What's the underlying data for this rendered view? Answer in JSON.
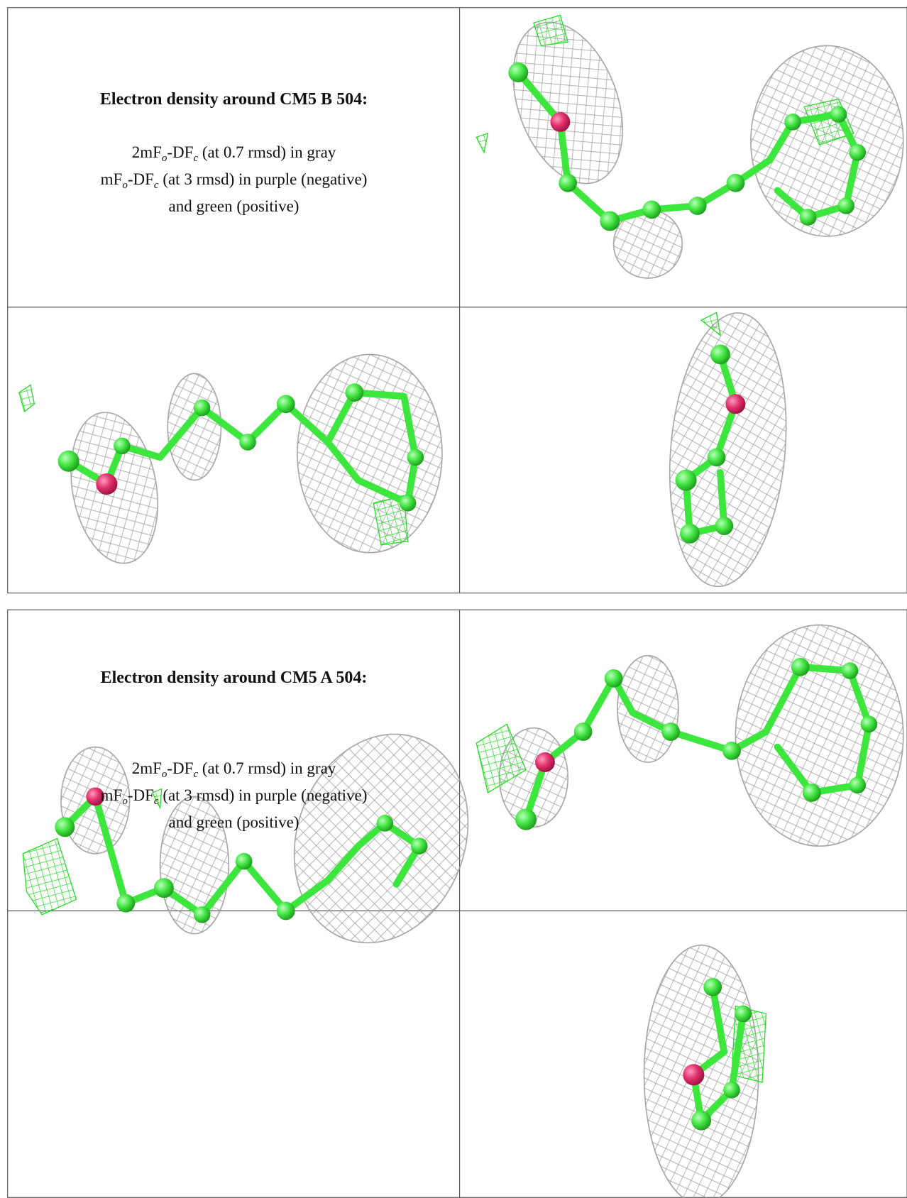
{
  "sections": [
    {
      "title": "Electron density around CM5 B 504:",
      "legend": [
        [
          "2mF",
          "o",
          "-DF",
          "c",
          " (at 0.7 rmsd) in gray"
        ],
        [
          "mF",
          "o",
          "-DF",
          "c",
          " (at 3 rmsd) in purple (negative)"
        ],
        [
          "and green (positive)"
        ]
      ]
    },
    {
      "title": "Electron density around CM5 A 504:",
      "legend": [
        [
          "2mF",
          "o",
          "-DF",
          "c",
          " (at 0.7 rmsd) in gray"
        ],
        [
          "mF",
          "o",
          "-DF",
          "c",
          " (at 3 rmsd) in purple (negative)"
        ],
        [
          "and green (positive)"
        ]
      ]
    }
  ]
}
